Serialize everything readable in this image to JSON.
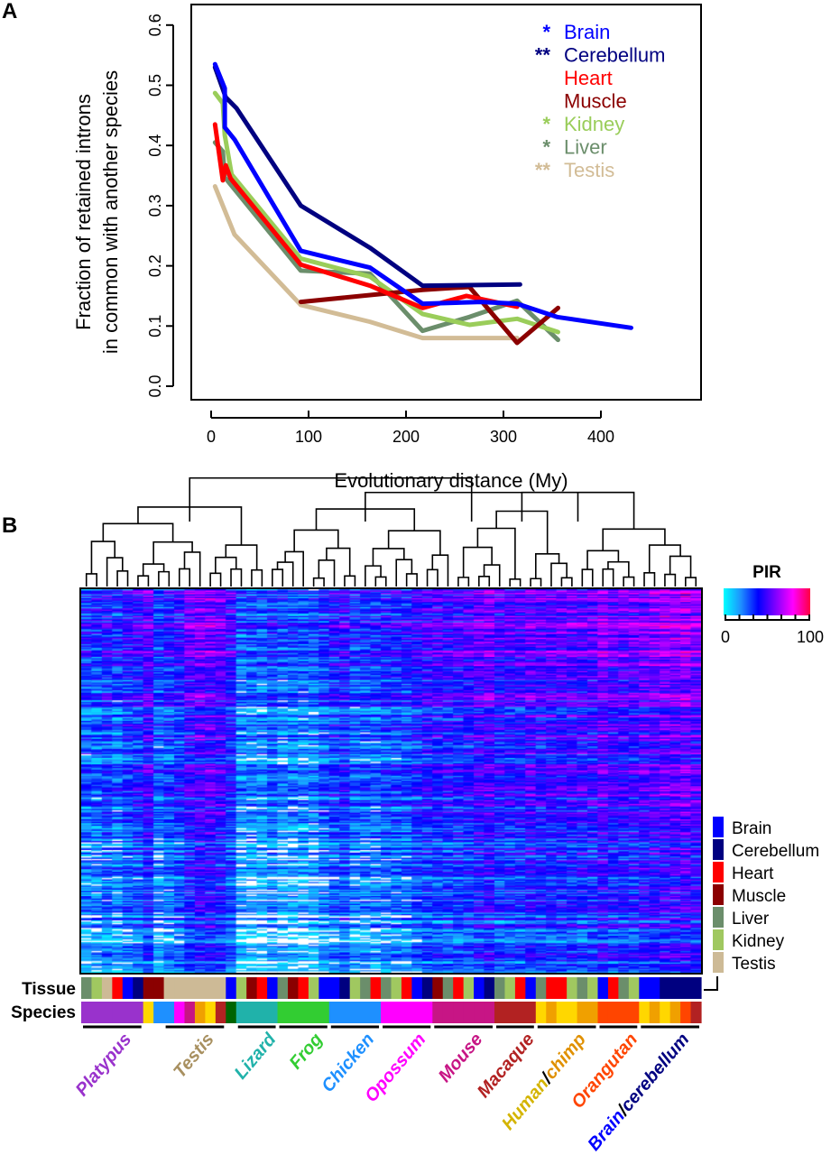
{
  "panels": {
    "a": "A",
    "b": "B"
  },
  "chart_data": [
    {
      "type": "line",
      "panel": "A",
      "xlabel": "Evolutionary distance (My)",
      "ylabel_lines": [
        "Fraction of retained introns",
        "in common with another species"
      ],
      "xlim": [
        -20,
        460
      ],
      "ylim": [
        -0.02,
        0.63
      ],
      "xticks": [
        0,
        100,
        200,
        300,
        400
      ],
      "yticks": [
        "0.0",
        "0.1",
        "0.2",
        "0.3",
        "0.4",
        "0.5",
        "0.6"
      ],
      "legend_position": "top-right",
      "series": [
        {
          "name": "Brain",
          "mark": "*",
          "color": "#0000FF",
          "x": [
            4,
            14,
            14,
            24,
            92,
            163,
            217,
            277,
            314,
            355,
            431
          ],
          "y": [
            0.535,
            0.495,
            0.43,
            0.41,
            0.225,
            0.197,
            0.137,
            0.14,
            0.137,
            0.115,
            0.097
          ]
        },
        {
          "name": "Cerebellum",
          "mark": "**",
          "color": "#000080",
          "x": [
            4,
            15,
            26,
            92,
            163,
            217,
            317
          ],
          "y": [
            0.53,
            0.48,
            0.462,
            0.3,
            0.23,
            0.167,
            0.169
          ]
        },
        {
          "name": "Heart",
          "mark": "",
          "color": "#FF0000",
          "x": [
            4,
            12,
            15,
            20,
            92,
            163,
            217,
            262,
            314
          ],
          "y": [
            0.435,
            0.342,
            0.367,
            0.345,
            0.202,
            0.167,
            0.13,
            0.15,
            0.132
          ]
        },
        {
          "name": "Muscle",
          "mark": "",
          "color": "#8B0000",
          "x": [
            92,
            217,
            265,
            314,
            356
          ],
          "y": [
            0.14,
            0.16,
            0.165,
            0.072,
            0.13
          ]
        },
        {
          "name": "Kidney",
          "mark": "*",
          "color": "#9ACD5A",
          "x": [
            4,
            12,
            14,
            21,
            92,
            163,
            217,
            265,
            314,
            356
          ],
          "y": [
            0.487,
            0.47,
            0.417,
            0.352,
            0.212,
            0.182,
            0.12,
            0.102,
            0.112,
            0.09
          ]
        },
        {
          "name": "Liver",
          "mark": "*",
          "color": "#6B8E6B",
          "x": [
            4,
            12,
            14,
            92,
            163,
            217,
            265,
            314,
            356
          ],
          "y": [
            0.405,
            0.39,
            0.347,
            0.192,
            0.187,
            0.092,
            0.115,
            0.142,
            0.077
          ]
        },
        {
          "name": "Testis",
          "mark": "**",
          "color": "#D2BC96",
          "x": [
            4,
            24,
            92,
            163,
            217,
            314
          ],
          "y": [
            0.332,
            0.252,
            0.135,
            0.107,
            0.08,
            0.08
          ]
        }
      ]
    },
    {
      "type": "heatmap",
      "panel": "B",
      "colorbar": {
        "title": "PIR",
        "min": "0",
        "max": "100",
        "range": [
          0,
          100
        ],
        "colors": [
          "#00FFFF",
          "#1E90FF",
          "#0000FF",
          "#8000FF",
          "#FF00FF",
          "#FF0040"
        ]
      },
      "annotation_labels": {
        "tissue": "Tissue",
        "species": "Species"
      },
      "tissue_legend": [
        {
          "name": "Brain",
          "color": "#0000FF"
        },
        {
          "name": "Cerebellum",
          "color": "#000080"
        },
        {
          "name": "Heart",
          "color": "#FF0000"
        },
        {
          "name": "Muscle",
          "color": "#8B0000"
        },
        {
          "name": "Liver",
          "color": "#6B8E6B"
        },
        {
          "name": "Kidney",
          "color": "#A0C860"
        },
        {
          "name": "Testis",
          "color": "#CDBA96"
        }
      ],
      "column_tissues": [
        "Liver",
        "Kidney",
        "Testis",
        "Heart",
        "Brain",
        "Cerebellum",
        "Muscle",
        "Muscle",
        "Testis",
        "Testis",
        "Testis",
        "Testis",
        "Testis",
        "Testis",
        "Brain",
        "Kidney",
        "Muscle",
        "Heart",
        "Brain",
        "Liver",
        "Muscle",
        "Heart",
        "Kidney",
        "Brain",
        "Brain",
        "Cerebellum",
        "Kidney",
        "Liver",
        "Heart",
        "Liver",
        "Kidney",
        "Heart",
        "Brain",
        "Cerebellum",
        "Muscle",
        "Liver",
        "Heart",
        "Kidney",
        "Brain",
        "Cerebellum",
        "Liver",
        "Kidney",
        "Heart",
        "Brain",
        "Liver",
        "Heart",
        "Heart",
        "Kidney",
        "Liver",
        "Kidney",
        "Brain",
        "Heart",
        "Liver",
        "Kidney",
        "Brain",
        "Brain",
        "Cerebellum",
        "Cerebellum",
        "Cerebellum",
        "Cerebellum"
      ],
      "species_colors": {
        "Platypus": "#9932CC",
        "Lizard": "#20B2AA",
        "Frog": "#32CD32",
        "Chicken": "#1E90FF",
        "Opossum": "#FF00FF",
        "Mouse": "#C71585",
        "Macaque": "#B22222",
        "Human": "#FFD700",
        "Chimp": "#F0A000",
        "Orangutan": "#FF4500",
        "Other": "#006400"
      },
      "column_species": [
        "Platypus",
        "Platypus",
        "Platypus",
        "Platypus",
        "Platypus",
        "Platypus",
        "Human",
        "Chicken",
        "Chicken",
        "Opossum",
        "Mouse",
        "Chimp",
        "Human",
        "Macaque",
        "Other",
        "Lizard",
        "Lizard",
        "Lizard",
        "Lizard",
        "Frog",
        "Frog",
        "Frog",
        "Frog",
        "Frog",
        "Chicken",
        "Chicken",
        "Chicken",
        "Chicken",
        "Chicken",
        "Opossum",
        "Opossum",
        "Opossum",
        "Opossum",
        "Opossum",
        "Mouse",
        "Mouse",
        "Mouse",
        "Mouse",
        "Mouse",
        "Mouse",
        "Macaque",
        "Macaque",
        "Macaque",
        "Macaque",
        "Human",
        "Chimp",
        "Human",
        "Human",
        "Chimp",
        "Chimp",
        "Orangutan",
        "Orangutan",
        "Orangutan",
        "Orangutan",
        "Human",
        "Chimp",
        "Human",
        "Chimp",
        "Orangutan",
        "Macaque"
      ],
      "groups": [
        {
          "label": "Platypus",
          "color": "#9932CC",
          "cols": [
            0,
            5
          ]
        },
        {
          "label": "Testis",
          "color": "#A89060",
          "cols": [
            8,
            13
          ]
        },
        {
          "label": "Lizard",
          "color": "#20B2AA",
          "cols": [
            15,
            18
          ]
        },
        {
          "label": "Frog",
          "color": "#32CD32",
          "cols": [
            19,
            23
          ]
        },
        {
          "label": "Chicken",
          "color": "#1E90FF",
          "cols": [
            24,
            28
          ]
        },
        {
          "label": "Opossum",
          "color": "#FF00FF",
          "cols": [
            29,
            33
          ]
        },
        {
          "label": "Mouse",
          "color": "#C71585",
          "cols": [
            34,
            39
          ]
        },
        {
          "label": "Macaque",
          "color": "#B22222",
          "cols": [
            40,
            43
          ]
        },
        {
          "label": "Human",
          "label2": "chimp",
          "sep": "/",
          "color": "#D4B400",
          "color2": "#E09000",
          "cols": [
            44,
            49
          ]
        },
        {
          "label": "Orangutan",
          "color": "#FF4500",
          "cols": [
            50,
            53
          ]
        },
        {
          "label": "Brain",
          "label2": "cerebellum",
          "sep": "/",
          "color": "#0000FF",
          "color2": "#000080",
          "cols": [
            54,
            59
          ]
        }
      ]
    }
  ]
}
